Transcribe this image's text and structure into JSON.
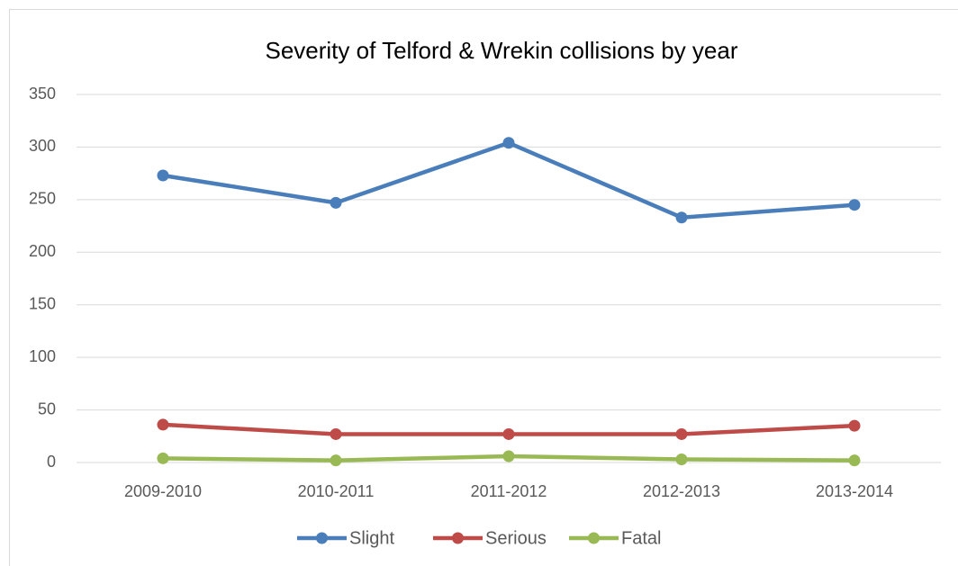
{
  "chart_data": {
    "type": "line",
    "title": "Severity of Telford & Wrekin collisions by year",
    "categories": [
      "2009-2010",
      "2010-2011",
      "2011-2012",
      "2012-2013",
      "2013-2014"
    ],
    "series": [
      {
        "name": "Slight",
        "color": "#4a7ebb",
        "values": [
          273,
          247,
          304,
          233,
          245
        ]
      },
      {
        "name": "Serious",
        "color": "#be4b48",
        "values": [
          36,
          27,
          27,
          27,
          35
        ]
      },
      {
        "name": "Fatal",
        "color": "#98b954",
        "values": [
          4,
          2,
          6,
          3,
          2
        ]
      }
    ],
    "ylim": [
      0,
      350
    ],
    "yticks": [
      0,
      50,
      100,
      150,
      200,
      250,
      300,
      350
    ],
    "grid": true,
    "legend": "bottom"
  }
}
